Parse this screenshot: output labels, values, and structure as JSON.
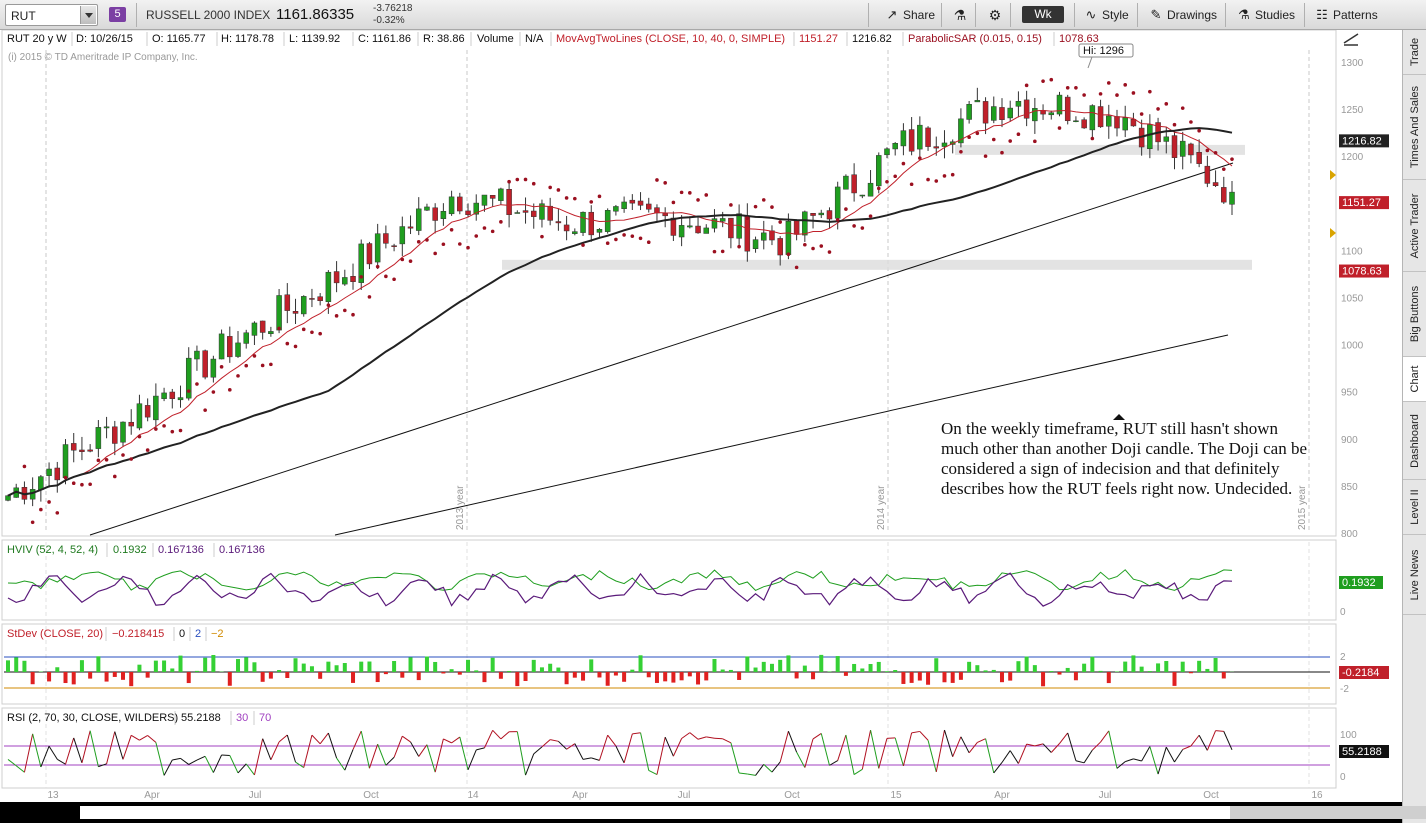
{
  "toolbar": {
    "symbol": "RUT",
    "link_number": "5",
    "index_name": "RUSSELL 2000 INDEX",
    "price": "1161.86335",
    "change": "-3.76218",
    "change_pct": "-0.32%",
    "share": "Share",
    "timeframe": "Wk",
    "style": "Style",
    "drawings": "Drawings",
    "studies": "Studies",
    "patterns": "Patterns"
  },
  "header": {
    "symbol_period": "RUT 20 y W",
    "date": "D: 10/26/15",
    "open": "O: 1165.77",
    "high": "H: 1178.78",
    "low": "L: 1139.92",
    "close": "C: 1161.86",
    "range": "R: 38.86",
    "volume_label": "Volume",
    "volume_value": "N/A",
    "mavg_label": "MovAvgTwoLines (CLOSE, 10, 40, 0, SIMPLE)",
    "mavg_v1": "1151.27",
    "mavg_v2": "1216.82",
    "psar_label": "ParabolicSAR (0.015, 0.15)",
    "psar_value": "1078.63",
    "copyright": "(i) 2015 © TD Ameritrade IP Company, Inc."
  },
  "hi_label": "Hi: 1296",
  "annotation": "On the weekly timeframe, RUT still hasn't shown much other than another Doji candle. The Doji can be considered a sign of indecision and that definitely describes how the RUT feels right now.  Undecided.",
  "price_axis": {
    "ticks": [
      "1300",
      "1250",
      "1200",
      "1150",
      "1100",
      "1050",
      "1000",
      "950",
      "900",
      "850",
      "800"
    ],
    "tags": [
      {
        "text": "1216.82",
        "bg": "#222222"
      },
      {
        "text": "1151.27",
        "bg": "#c0202a"
      },
      {
        "text": "1078.63",
        "bg": "#c0202a"
      }
    ]
  },
  "year_labels": [
    "2013 year",
    "2014 year",
    "2015 year"
  ],
  "time_axis": [
    "13",
    "Apr",
    "Jul",
    "Oct",
    "14",
    "Apr",
    "Jul",
    "Oct",
    "15",
    "Apr",
    "Jul",
    "Oct",
    "16"
  ],
  "hviv": {
    "label": "HVIV (52, 4, 52, 4)",
    "v1": "0.1932",
    "v2": "0.167136",
    "v3": "0.167136",
    "tag": "0.1932",
    "axis_zero": "0"
  },
  "stdev": {
    "label": "StDev (CLOSE, 20)",
    "v1": "−0.218415",
    "v2": "0",
    "v3": "2",
    "v4": "−2",
    "tag": "-0.2184",
    "axis_top": "2",
    "axis_bottom": "-2"
  },
  "rsi": {
    "label": "RSI (2, 70, 30, CLOSE, WILDERS)",
    "v1": "55.2188",
    "v2": "30",
    "v3": "70",
    "tag": "55.2188",
    "axis_top": "100",
    "axis_mid": "50",
    "axis_bottom": "0"
  },
  "side_tabs": [
    "Trade",
    "Times And Sales",
    "Active Trader",
    "Big Buttons",
    "Chart",
    "Dashboard",
    "Level II",
    "Live News"
  ],
  "colors": {
    "up": "#1f9e1f",
    "down": "#c0202a",
    "sma10": "#c0202a",
    "sma40": "#222222",
    "psar": "#9b1020",
    "hviv1": "#1f9e1f",
    "hviv2": "#5a1a7a"
  },
  "chart_data": {
    "type": "candlestick",
    "title": "RUT 20 y W",
    "ylim": [
      800,
      1310
    ],
    "close_series_anchor": [
      {
        "x": "13",
        "y": 840
      },
      {
        "x": "Apr",
        "y": 915
      },
      {
        "x": "Jul",
        "y": 1000
      },
      {
        "x": "Oct",
        "y": 1075
      },
      {
        "x": "14",
        "y": 1160
      },
      {
        "x": "Apr",
        "y": 1130
      },
      {
        "x": "Jul",
        "y": 1135
      },
      {
        "x": "Oct",
        "y": 1110
      },
      {
        "x": "15",
        "y": 1210
      },
      {
        "x": "Apr",
        "y": 1260
      },
      {
        "x": "Jul",
        "y": 1245
      },
      {
        "x": "Oct",
        "y": 1162
      }
    ],
    "last_close": 1161.86,
    "high_marker": 1296
  }
}
